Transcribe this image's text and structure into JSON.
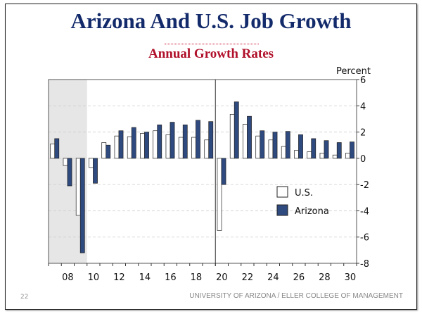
{
  "title": "Arizona And U.S. Job Growth",
  "subtitle": "Annual Growth Rates",
  "footer": {
    "page_number": "22",
    "text": "UNIVERSITY OF ARIZONA / ELLER COLLEGE OF MANAGEMENT"
  },
  "colors": {
    "us": "#ffffff",
    "arizona": "#2f4a7f",
    "recession_shade": "#e6e6e6",
    "title": "#132a6b",
    "subtitle": "#b0102a"
  },
  "chart_data": {
    "type": "bar",
    "ylabel": "Percent",
    "ylim": [
      -8,
      6
    ],
    "yticks": [
      6,
      4,
      2,
      0,
      -2,
      -4,
      -6,
      -8
    ],
    "ytick_labels": [
      "6",
      "4",
      "2",
      "0",
      "-2",
      "-4",
      "-6",
      "-8"
    ],
    "x": [
      2007,
      2008,
      2009,
      2010,
      2011,
      2012,
      2013,
      2014,
      2015,
      2016,
      2017,
      2018,
      2019,
      2020,
      2021,
      2022,
      2023,
      2024,
      2025,
      2026,
      2027,
      2028,
      2029,
      2030
    ],
    "xtick_labels": [
      "08",
      "10",
      "12",
      "14",
      "16",
      "18",
      "20",
      "22",
      "24",
      "26",
      "28",
      "30"
    ],
    "grid": "horizontal dashed",
    "shaded_region": [
      2007,
      2009
    ],
    "forecast_divider": 2020,
    "legend_position": "lower-right",
    "series": [
      {
        "name": "U.S.",
        "values": [
          1.1,
          -0.55,
          -4.35,
          -0.7,
          1.2,
          1.7,
          1.65,
          1.9,
          2.1,
          1.8,
          1.6,
          1.6,
          1.4,
          -5.5,
          3.35,
          2.6,
          1.7,
          1.4,
          0.9,
          0.6,
          0.5,
          0.4,
          0.25,
          0.4
        ]
      },
      {
        "name": "Arizona",
        "values": [
          1.5,
          -2.1,
          -7.2,
          -1.9,
          1.0,
          2.1,
          2.35,
          2.0,
          2.55,
          2.75,
          2.55,
          2.9,
          2.8,
          -2.0,
          4.3,
          3.2,
          2.1,
          2.0,
          2.05,
          1.8,
          1.5,
          1.35,
          1.2,
          1.25
        ]
      }
    ]
  }
}
